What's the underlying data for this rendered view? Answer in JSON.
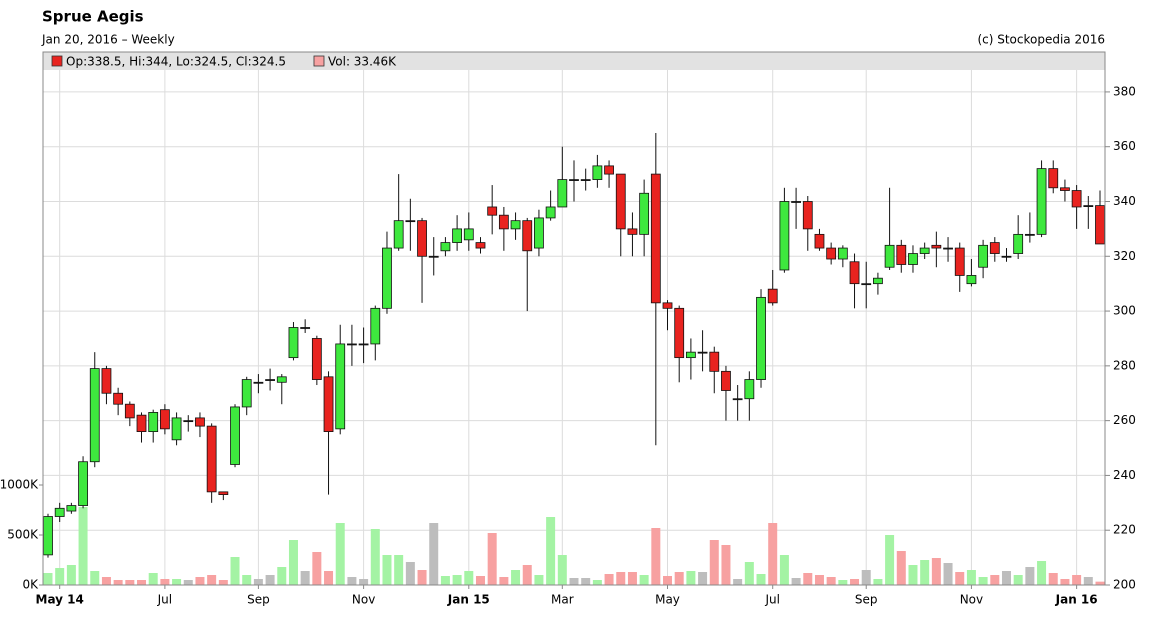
{
  "chart_data": {
    "type": "candlestick",
    "title": "Sprue Aegis",
    "subtitle": "Jan 20, 2016 – Weekly",
    "credit": "(c) Stockopedia 2016",
    "categories": [
      null,
      "May 14",
      null,
      null,
      null,
      null,
      null,
      null,
      null,
      null,
      "Jul",
      null,
      null,
      null,
      null,
      null,
      null,
      null,
      "Sep",
      null,
      null,
      null,
      null,
      null,
      null,
      null,
      null,
      "Nov",
      null,
      null,
      null,
      null,
      null,
      null,
      null,
      null,
      "Jan 15",
      null,
      null,
      null,
      null,
      null,
      null,
      null,
      "Mar",
      null,
      null,
      null,
      null,
      null,
      null,
      null,
      null,
      "May",
      null,
      null,
      null,
      null,
      null,
      null,
      null,
      null,
      "Jul",
      null,
      null,
      null,
      null,
      null,
      null,
      null,
      "Sep",
      null,
      null,
      null,
      null,
      null,
      null,
      null,
      null,
      "Nov",
      null,
      null,
      null,
      null,
      null,
      null,
      null,
      null,
      "Jan 16",
      null,
      null
    ],
    "series": [
      {
        "name": "Op:338.5, Hi:344, Lo:324.5, Cl:324.5",
        "color": "#e8231f",
        "up_color": "#3ee83e",
        "flat_color": "#222222",
        "open": [
          211,
          225,
          227,
          229,
          245,
          279,
          270,
          266,
          262,
          256,
          264,
          253,
          260,
          261,
          258,
          234,
          244,
          265,
          274,
          275,
          274,
          283,
          294,
          290,
          276,
          257,
          288,
          288,
          288,
          301,
          323,
          333,
          333,
          320,
          322,
          325,
          326,
          325,
          338,
          335,
          330,
          333,
          323,
          334,
          338,
          348,
          348,
          348,
          353,
          350,
          330,
          328,
          350,
          303,
          301,
          283,
          285,
          285,
          278,
          268,
          268,
          275,
          308,
          315,
          340,
          340,
          328,
          323,
          319,
          318,
          310,
          310,
          316,
          324,
          317,
          321,
          324,
          323,
          323,
          310,
          316,
          325,
          320,
          321,
          328,
          328,
          352,
          345,
          344,
          338.5,
          338.5
        ],
        "high": [
          226,
          230,
          230,
          247,
          285,
          280,
          272,
          267,
          263,
          264,
          266,
          263,
          262,
          263,
          259,
          234,
          266,
          276,
          277,
          279,
          277,
          296,
          297,
          291,
          278,
          295,
          295,
          294,
          302,
          329,
          350,
          341,
          334,
          327,
          327,
          335,
          336,
          327,
          346,
          338,
          336,
          334,
          337,
          344,
          360,
          355,
          352,
          357,
          355,
          350,
          336,
          348,
          365,
          304,
          302,
          290,
          293,
          287,
          280,
          273,
          278,
          308,
          315,
          345,
          345,
          342,
          330,
          325,
          324,
          321,
          318,
          314,
          345,
          326,
          324,
          325,
          329,
          327,
          325,
          319,
          326,
          327,
          323,
          335,
          336,
          355,
          355,
          348,
          346,
          342,
          344
        ],
        "low": [
          210,
          223,
          226,
          228,
          243,
          266,
          262,
          258,
          252,
          252,
          255,
          251,
          256,
          254,
          230,
          231,
          243,
          262,
          270,
          271,
          266,
          282,
          292,
          273,
          233,
          255,
          280,
          281,
          282,
          299,
          322,
          322,
          303,
          313,
          320,
          322,
          322,
          321,
          328,
          322,
          326,
          300,
          320,
          333,
          338,
          340,
          344,
          345,
          345,
          320,
          320,
          320,
          251,
          293,
          274,
          275,
          278,
          270,
          260,
          260,
          260,
          272,
          302,
          314,
          330,
          322,
          322,
          317,
          316,
          301,
          301,
          306,
          315,
          314,
          314,
          319,
          316,
          318,
          307,
          309,
          312,
          318,
          318,
          319,
          325,
          327,
          343,
          340,
          330,
          330,
          324.5
        ],
        "close": [
          225,
          228,
          229,
          245,
          279,
          270,
          266,
          261,
          256,
          263,
          257,
          261,
          260,
          258,
          234,
          233,
          265,
          275,
          274,
          275,
          276,
          294,
          294,
          275,
          256,
          288,
          288,
          288,
          301,
          323,
          333,
          333,
          320,
          320,
          325,
          330,
          330,
          323,
          335,
          330,
          333,
          322,
          334,
          338,
          348,
          348,
          348,
          353,
          350,
          330,
          328,
          343,
          303,
          301,
          283,
          285,
          285,
          278,
          271,
          268,
          275,
          305,
          303,
          340,
          340,
          330,
          323,
          319,
          323,
          310,
          310,
          312,
          324,
          317,
          321,
          323,
          323,
          323,
          313,
          313,
          324,
          321,
          320,
          328,
          328,
          352,
          345,
          344,
          338,
          338.5,
          324.5
        ]
      },
      {
        "name": "Vol: 33.46K",
        "color": "#f7a1a1",
        "up_color": "#a4f3a4",
        "flat_color": "#bdbdbd",
        "axis": "y2",
        "values": [
          120,
          170,
          200,
          780,
          140,
          80,
          50,
          50,
          50,
          120,
          60,
          60,
          50,
          80,
          100,
          50,
          280,
          100,
          60,
          100,
          180,
          450,
          140,
          330,
          140,
          620,
          80,
          60,
          560,
          300,
          300,
          230,
          150,
          620,
          90,
          100,
          140,
          90,
          520,
          80,
          150,
          200,
          100,
          680,
          300,
          70,
          70,
          50,
          110,
          130,
          130,
          100,
          570,
          90,
          130,
          140,
          130,
          450,
          400,
          60,
          230,
          110,
          620,
          300,
          70,
          120,
          100,
          80,
          50,
          60,
          150,
          60,
          500,
          340,
          200,
          250,
          270,
          220,
          130,
          150,
          80,
          100,
          140,
          100,
          180,
          240,
          120,
          60,
          100,
          80,
          33.46
        ]
      }
    ],
    "ylim": [
      200,
      388
    ],
    "yticks": [
      200,
      220,
      240,
      260,
      280,
      300,
      320,
      340,
      360,
      380
    ],
    "y2lim": [
      0,
      5150
    ],
    "y2ticks": [
      {
        "value": 0,
        "label": "0K"
      },
      {
        "value": 500,
        "label": "500K"
      },
      {
        "value": 1000,
        "label": "1000K"
      }
    ],
    "grid": true
  }
}
